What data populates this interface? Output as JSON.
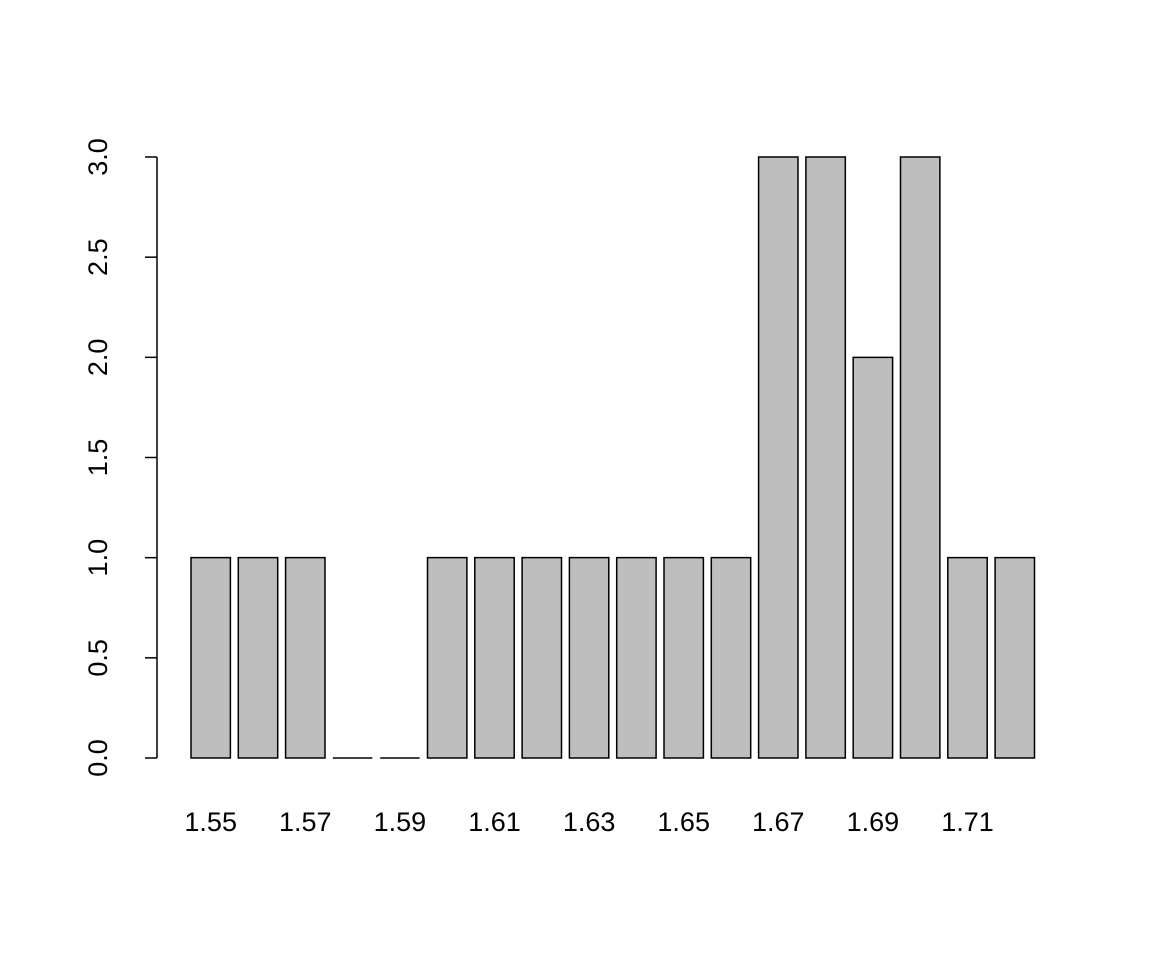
{
  "chart_data": {
    "type": "bar",
    "categories": [
      "1.55",
      null,
      "1.57",
      null,
      "1.59",
      null,
      "1.61",
      null,
      "1.63",
      null,
      "1.65",
      null,
      "1.67",
      null,
      "1.69",
      null,
      "1.71",
      null
    ],
    "values": [
      1,
      1,
      1,
      0,
      0,
      1,
      1,
      1,
      1,
      1,
      1,
      1,
      3,
      3,
      2,
      3,
      1,
      1
    ],
    "color": "#bebebe",
    "ylim": [
      0,
      3
    ],
    "yticks": [
      {
        "value": 0,
        "label": "0.0"
      },
      {
        "value": 0.5,
        "label": "0.5"
      },
      {
        "value": 1,
        "label": "1.0"
      },
      {
        "value": 1.5,
        "label": "1.5"
      },
      {
        "value": 2,
        "label": "2.0"
      },
      {
        "value": 2.5,
        "label": "2.5"
      },
      {
        "value": 3,
        "label": "3.0"
      }
    ]
  }
}
